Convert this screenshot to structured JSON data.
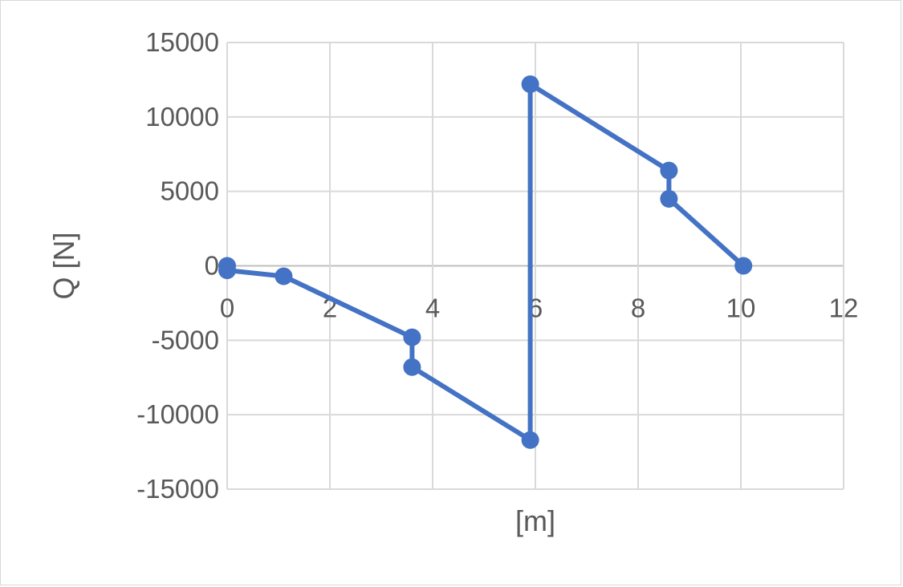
{
  "chart_data": {
    "type": "scatter",
    "title": "",
    "xlabel": "[m]",
    "ylabel": "Q [N]",
    "xlim": [
      0,
      12
    ],
    "ylim": [
      -15000,
      15000
    ],
    "x_ticks": [
      0,
      2,
      4,
      6,
      8,
      10,
      12
    ],
    "y_ticks": [
      15000,
      10000,
      5000,
      0,
      -5000,
      -10000,
      -15000
    ],
    "x_tick_labels": [
      "0",
      "2",
      "4",
      "6",
      "8",
      "10",
      "12"
    ],
    "y_tick_labels": [
      "15000",
      "10000",
      "5000",
      "0",
      "-5000",
      "-10000",
      "-15000"
    ],
    "grid": true,
    "lines_with_markers": true,
    "series": [
      {
        "color": "#4472c4",
        "points": [
          {
            "x": 0,
            "y": 0
          },
          {
            "x": 0,
            "y": -300
          },
          {
            "x": 1.1,
            "y": -700
          },
          {
            "x": 3.6,
            "y": -4800
          },
          {
            "x": 3.6,
            "y": -6800
          },
          {
            "x": 5.9,
            "y": -11700
          },
          {
            "x": 5.9,
            "y": 12200
          },
          {
            "x": 8.6,
            "y": 6400
          },
          {
            "x": 8.6,
            "y": 4500
          },
          {
            "x": 10.05,
            "y": 0
          }
        ]
      }
    ]
  }
}
